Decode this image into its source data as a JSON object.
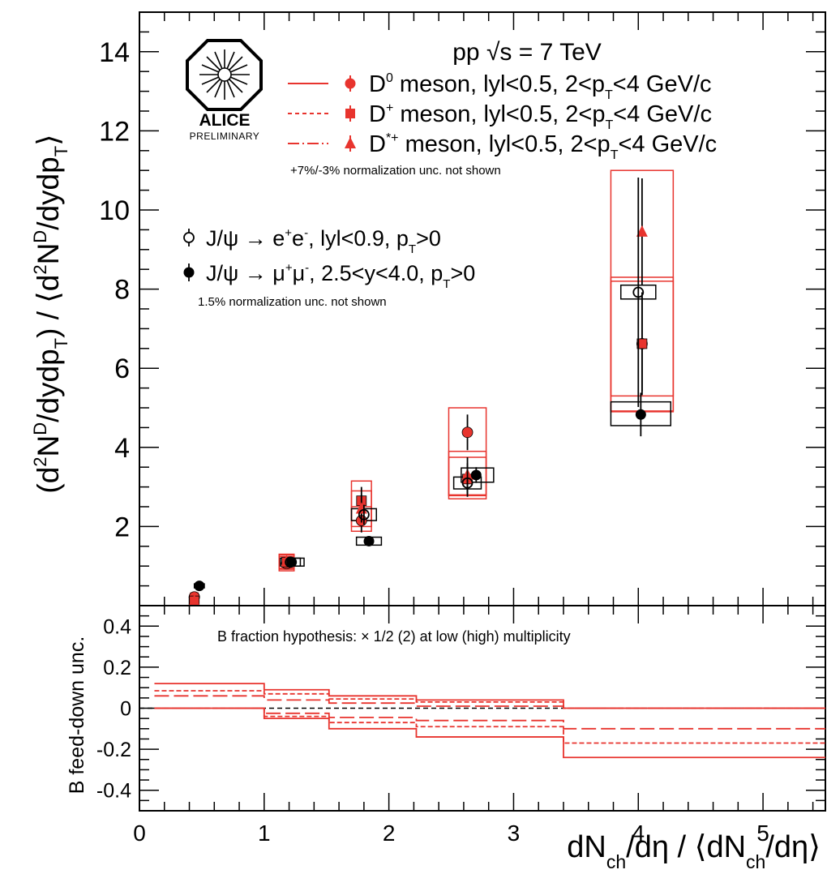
{
  "colors": {
    "d_meson": "#e8342e",
    "jpsi": "#000000",
    "axis": "#000000"
  },
  "logo": {
    "name": "ALICE",
    "subtitle": "PRELIMINARY"
  },
  "header": {
    "energy": "pp √s = 7 TeV",
    "d_norm_note": "+7%/-3% normalization unc. not shown",
    "jpsi_norm_note": "1.5% normalization unc. not shown",
    "bottom_note": "B fraction hypothesis: × 1/2 (2) at low (high) multiplicity"
  },
  "legend": [
    {
      "key": "d0",
      "text": "D⁰ meson, lyl<0.5, 2<p_T<4 GeV/c",
      "line": "solid",
      "marker": "circle",
      "color": "#e8342e"
    },
    {
      "key": "dplus",
      "text": "D⁺ meson, lyl<0.5, 2<p_T<4 GeV/c",
      "line": "dashed",
      "marker": "square",
      "color": "#e8342e"
    },
    {
      "key": "dstar",
      "text": "D*⁺ meson, lyl<0.5, 2<p_T<4 GeV/c",
      "line": "dashdot",
      "marker": "triangle",
      "color": "#e8342e"
    },
    {
      "key": "jpsi_ee",
      "text": "J/ψ → e⁺e⁻, lyl<0.9, p_T>0",
      "marker": "open-circle",
      "color": "#000000"
    },
    {
      "key": "jpsi_mumu",
      "text": "J/ψ → μ⁺μ⁻, 2.5<y<4.0, p_T>0",
      "marker": "filled-circle",
      "color": "#000000"
    }
  ],
  "chart_data": [
    {
      "type": "scatter",
      "ylabel": "(d²Nᴰ/dydp_T) / ⟨d²Nᴰ/dydp_T⟩",
      "xlim": [
        0,
        5.5
      ],
      "ylim": [
        0,
        15
      ],
      "yticks": [
        2,
        4,
        6,
        8,
        10,
        12,
        14
      ],
      "series": [
        {
          "name": "D⁰ meson, lyl<0.5, 2<p_T<4 GeV/c",
          "marker": "circle",
          "x": [
            0.44,
            1.18,
            1.78,
            2.63,
            4.03
          ],
          "y": [
            0.22,
            1.06,
            2.15,
            4.38,
            6.62
          ],
          "yerr": [
            0.1,
            0.12,
            0.3,
            0.45,
            1.3
          ],
          "syst": [
            {
              "xlo": 0.41,
              "xhi": 0.47,
              "ylo": 0.12,
              "yhi": 0.32
            },
            {
              "xlo": 1.12,
              "xhi": 1.24,
              "ylo": 0.88,
              "yhi": 1.24
            },
            {
              "xlo": 1.7,
              "xhi": 1.86,
              "ylo": 1.88,
              "yhi": 2.5
            },
            {
              "xlo": 2.48,
              "xhi": 2.78,
              "ylo": 2.78,
              "yhi": 5.0
            },
            {
              "xlo": 3.78,
              "xhi": 4.28,
              "ylo": 4.92,
              "yhi": 8.3
            }
          ]
        },
        {
          "name": "D⁺ meson, lyl<0.5, 2<p_T<4 GeV/c",
          "marker": "square",
          "x": [
            0.44,
            1.18,
            1.78,
            2.63,
            4.03
          ],
          "y": [
            0.12,
            1.1,
            2.65,
            3.2,
            6.62
          ],
          "yerr": [
            0.1,
            0.12,
            0.35,
            0.4,
            1.2
          ],
          "syst": [
            {
              "xlo": 0.41,
              "xhi": 0.47,
              "ylo": 0.05,
              "yhi": 0.2
            },
            {
              "xlo": 1.12,
              "xhi": 1.24,
              "ylo": 0.92,
              "yhi": 1.28
            },
            {
              "xlo": 1.7,
              "xhi": 1.86,
              "ylo": 2.15,
              "yhi": 3.15
            },
            {
              "xlo": 2.48,
              "xhi": 2.78,
              "ylo": 2.7,
              "yhi": 3.75
            },
            {
              "xlo": 3.78,
              "xhi": 4.28,
              "ylo": 5.3,
              "yhi": 8.2
            }
          ]
        },
        {
          "name": "D*⁺ meson, lyl<0.5, 2<p_T<4 GeV/c",
          "marker": "triangle",
          "x": [
            0.44,
            1.18,
            1.78,
            2.63,
            4.03
          ],
          "y": [
            0.12,
            1.12,
            2.45,
            3.3,
            9.45
          ],
          "yerr": [
            0.1,
            0.12,
            0.35,
            0.45,
            1.35
          ],
          "syst": [
            {
              "xlo": 0.41,
              "xhi": 0.47,
              "ylo": 0.05,
              "yhi": 0.2
            },
            {
              "xlo": 1.12,
              "xhi": 1.24,
              "ylo": 0.95,
              "yhi": 1.3
            },
            {
              "xlo": 1.7,
              "xhi": 1.86,
              "ylo": 2.0,
              "yhi": 2.9
            },
            {
              "xlo": 2.48,
              "xhi": 2.78,
              "ylo": 2.8,
              "yhi": 3.9
            },
            {
              "xlo": 3.78,
              "xhi": 4.28,
              "ylo": 4.9,
              "yhi": 11.0
            }
          ]
        },
        {
          "name": "J/ψ → e⁺e⁻, lyl<0.9, p_T>0",
          "marker": "open-circle",
          "x": [
            1.21,
            1.8,
            2.63,
            4.0
          ],
          "y": [
            1.1,
            2.3,
            3.1,
            7.92
          ],
          "yerr": [
            0.1,
            0.25,
            0.35,
            2.9
          ],
          "syst": [
            {
              "xlo": 1.13,
              "xhi": 1.29,
              "ylo": 1.0,
              "yhi": 1.2
            },
            {
              "xlo": 1.7,
              "xhi": 1.9,
              "ylo": 2.15,
              "yhi": 2.45
            },
            {
              "xlo": 2.52,
              "xhi": 2.74,
              "ylo": 2.95,
              "yhi": 3.25
            },
            {
              "xlo": 3.86,
              "xhi": 4.14,
              "ylo": 7.75,
              "yhi": 8.1
            }
          ]
        },
        {
          "name": "J/ψ → μ⁺μ⁻, 2.5<y<4.0, p_T>0",
          "marker": "filled-circle",
          "x": [
            0.48,
            1.22,
            1.84,
            2.7,
            4.02
          ],
          "y": [
            0.5,
            1.1,
            1.63,
            3.3,
            4.83
          ],
          "yerr": [
            0.05,
            0.05,
            0.08,
            0.2,
            0.55
          ],
          "syst": [
            {
              "xlo": 0.44,
              "xhi": 0.52,
              "ylo": 0.45,
              "yhi": 0.55
            },
            {
              "xlo": 1.16,
              "xhi": 1.32,
              "ylo": 1.0,
              "yhi": 1.2
            },
            {
              "xlo": 1.74,
              "xhi": 1.94,
              "ylo": 1.53,
              "yhi": 1.73
            },
            {
              "xlo": 2.58,
              "xhi": 2.84,
              "ylo": 3.12,
              "yhi": 3.48
            },
            {
              "xlo": 3.78,
              "xhi": 4.26,
              "ylo": 4.55,
              "yhi": 5.15
            }
          ]
        }
      ]
    },
    {
      "type": "line",
      "ylabel": "B feed-down unc.",
      "xlabel": "dN_ch/dη / ⟨dN_ch/dη⟩",
      "xlim": [
        0,
        5.5
      ],
      "ylim": [
        -0.5,
        0.5
      ],
      "xticks": [
        0,
        1,
        2,
        3,
        4,
        5
      ],
      "yticks": [
        -0.4,
        -0.2,
        0,
        0.2,
        0.4
      ],
      "bin_edges": [
        0.12,
        1.0,
        1.52,
        2.22,
        3.4,
        5.5
      ],
      "series": [
        {
          "name": "D⁰ meson upper",
          "line": "solid",
          "values": [
            0.12,
            0.09,
            0.06,
            0.04,
            0.0
          ]
        },
        {
          "name": "D⁰ meson lower",
          "line": "solid",
          "values": [
            0.0,
            -0.05,
            -0.1,
            -0.14,
            -0.24
          ]
        },
        {
          "name": "D⁺ meson upper",
          "line": "dashed",
          "values": [
            0.085,
            0.07,
            0.045,
            0.03,
            0.0
          ]
        },
        {
          "name": "D⁺ meson lower",
          "line": "dashed",
          "values": [
            0.0,
            -0.04,
            -0.07,
            -0.09,
            -0.17
          ]
        },
        {
          "name": "D*⁺ meson upper",
          "line": "dashdot",
          "values": [
            0.06,
            0.04,
            0.025,
            0.01,
            0.0
          ]
        },
        {
          "name": "D*⁺ meson lower",
          "line": "dashdot",
          "values": [
            0.0,
            -0.025,
            -0.045,
            -0.06,
            -0.1
          ]
        }
      ]
    }
  ]
}
